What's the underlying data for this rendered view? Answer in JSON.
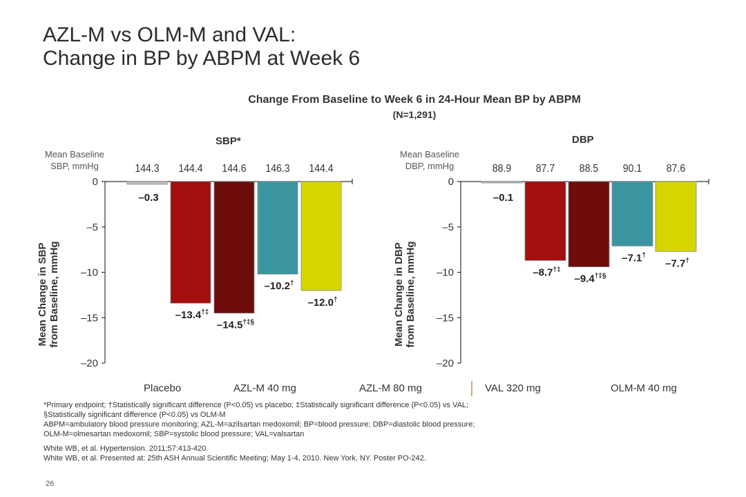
{
  "slide": {
    "title_line1": "AZL-M vs OLM-M and VAL:",
    "title_line2": "Change in BP by ABPM at Week 6",
    "page_number": "26"
  },
  "chart_data": {
    "type": "bar",
    "title": "Change From Baseline to Week 6 in 24-Hour Mean BP by ABPM",
    "subtitle": "(N=1,291)",
    "categories": [
      "Placebo",
      "AZL-M 40 mg",
      "AZL-M 80 mg",
      "VAL 320 mg",
      "OLM-M 40 mg"
    ],
    "colors": [
      "#c0c0c0",
      "#a40e0e",
      "#6e0b0b",
      "#3a95a0",
      "#d5d500"
    ],
    "panels": [
      {
        "title": "SBP*",
        "baseline_label_1": "Mean Baseline",
        "baseline_label_2": "SBP, mmHg",
        "baselines": [
          "144.3",
          "144.4",
          "144.6",
          "146.3",
          "144.4"
        ],
        "ylabel_1": "Mean Change in SBP",
        "ylabel_2": "from Baseline, mmHg",
        "ylim": [
          -20,
          0
        ],
        "yticks": [
          "0",
          "–5",
          "–10",
          "–15",
          "–20"
        ],
        "values": [
          -0.3,
          -13.4,
          -14.5,
          -10.2,
          -12.0
        ],
        "labels": [
          "–0.3",
          "–13.4",
          "–14.5",
          "–10.2",
          "–12.0"
        ],
        "marks": [
          "",
          "†‡",
          "†‡§",
          "†",
          "†"
        ]
      },
      {
        "title": "DBP",
        "baseline_label_1": "Mean Baseline",
        "baseline_label_2": "DBP, mmHg",
        "baselines": [
          "88.9",
          "87.7",
          "88.5",
          "90.1",
          "87.6"
        ],
        "ylabel_1": "Mean Change in DBP",
        "ylabel_2": "from Baseline, mmHg",
        "ylim": [
          -20,
          0
        ],
        "yticks": [
          "0",
          "–5",
          "–10",
          "–15",
          "–20"
        ],
        "values": [
          -0.1,
          -8.7,
          -9.4,
          -7.1,
          -7.7
        ],
        "labels": [
          "–0.1",
          "–8.7",
          "–9.4",
          "–7.1",
          "–7.7"
        ],
        "marks": [
          "",
          "†‡",
          "†‡§",
          "†",
          "†"
        ]
      }
    ]
  },
  "footnotes": {
    "line1": "*Primary endpoint; †Statistically significant difference (P<0.05) vs placebo; ‡Statistically significant difference (P<0.05) vs VAL;",
    "line2": "§Statistically significant difference (P<0.05) vs OLM-M",
    "line3": "ABPM=ambulatory blood pressure monitoring; AZL-M=azilsartan medoxomil; BP=blood pressure; DBP=diastolic blood pressure;",
    "line4": "OLM-M=olmesartan medoxomil; SBP=systolic blood pressure; VAL=valsartan",
    "ref1": "White WB, et al. Hypertension. 2011;57:413-420.",
    "ref2": "White WB, et al. Presented at: 25th ASH Annual Scientific Meeting; May 1-4, 2010. New York, NY. Poster PO-242."
  }
}
